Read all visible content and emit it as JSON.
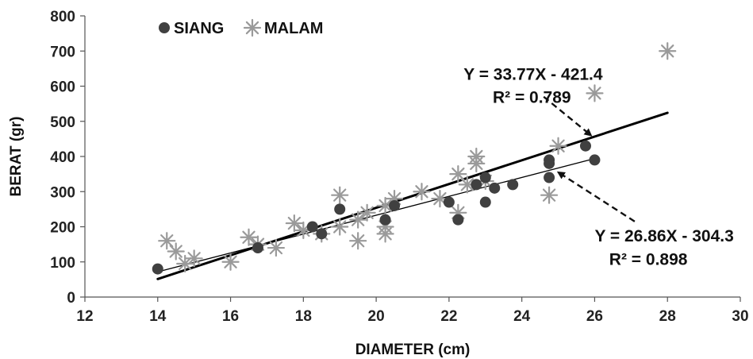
{
  "chart_data": {
    "type": "scatter",
    "xlabel": "DIAMETER (cm)",
    "ylabel": "BERAT (gr)",
    "xlim": [
      12,
      30
    ],
    "ylim": [
      0,
      800
    ],
    "xticks": [
      12,
      14,
      16,
      18,
      20,
      22,
      24,
      26,
      28,
      30
    ],
    "yticks": [
      0,
      100,
      200,
      300,
      400,
      500,
      600,
      700,
      800
    ],
    "x_tick_labels": [
      "12",
      "14",
      "16",
      "18",
      "20",
      "22",
      "24",
      "26",
      "28",
      "30"
    ],
    "y_tick_labels": [
      "0",
      "100",
      "200",
      "300",
      "400",
      "500",
      "600",
      "700",
      "800"
    ],
    "grid": false,
    "legend_position": "top-left",
    "series": [
      {
        "name": "SIANG",
        "marker": "circle",
        "color": "#404040",
        "points": [
          [
            14.0,
            80
          ],
          [
            16.75,
            140
          ],
          [
            18.25,
            200
          ],
          [
            18.5,
            180
          ],
          [
            19.0,
            250
          ],
          [
            20.25,
            220
          ],
          [
            20.5,
            260
          ],
          [
            22.0,
            270
          ],
          [
            22.25,
            220
          ],
          [
            22.75,
            320
          ],
          [
            23.0,
            270
          ],
          [
            23.0,
            340
          ],
          [
            23.25,
            310
          ],
          [
            23.75,
            320
          ],
          [
            24.75,
            340
          ],
          [
            24.75,
            380
          ],
          [
            24.75,
            390
          ],
          [
            25.75,
            430
          ],
          [
            26.0,
            390
          ]
        ],
        "trendline": {
          "slope": 26.86,
          "intercept": -304.3,
          "x_range": [
            14,
            26
          ],
          "width": 1.3
        }
      },
      {
        "name": "MALAM",
        "marker": "asterisk",
        "color": "#9a9a9a",
        "points": [
          [
            14.25,
            160
          ],
          [
            14.5,
            130
          ],
          [
            14.75,
            95
          ],
          [
            15.0,
            110
          ],
          [
            16.0,
            100
          ],
          [
            16.5,
            170
          ],
          [
            16.75,
            150
          ],
          [
            17.25,
            140
          ],
          [
            17.75,
            210
          ],
          [
            18.0,
            190
          ],
          [
            18.5,
            180
          ],
          [
            19.0,
            200
          ],
          [
            19.0,
            290
          ],
          [
            19.5,
            160
          ],
          [
            19.5,
            220
          ],
          [
            19.75,
            240
          ],
          [
            20.25,
            180
          ],
          [
            20.25,
            200
          ],
          [
            20.25,
            260
          ],
          [
            20.5,
            280
          ],
          [
            21.25,
            300
          ],
          [
            21.75,
            280
          ],
          [
            22.25,
            240
          ],
          [
            22.25,
            350
          ],
          [
            22.5,
            320
          ],
          [
            22.75,
            380
          ],
          [
            22.75,
            400
          ],
          [
            23.0,
            330
          ],
          [
            24.75,
            290
          ],
          [
            25.0,
            430
          ],
          [
            26.0,
            580
          ],
          [
            28.0,
            700
          ]
        ],
        "trendline": {
          "slope": 33.77,
          "intercept": -421.4,
          "x_range": [
            14,
            28
          ],
          "width": 3
        }
      }
    ],
    "annotations": [
      {
        "lines": [
          "Y = 33.77X - 421.4",
          "R² = 0.789"
        ],
        "series": "MALAM",
        "text_at": [
          22.4,
          618
        ],
        "r2_at": [
          23.2,
          553
        ],
        "arrow_from": [
          24.6,
          570
        ],
        "arrow_to": [
          25.9,
          460
        ]
      },
      {
        "lines": [
          "Y = 26.86X - 304.3",
          "R² = 0.898"
        ],
        "series": "SIANG",
        "text_at": [
          26.0,
          158
        ],
        "r2_at": [
          26.4,
          92
        ],
        "arrow_from": [
          27.1,
          215
        ],
        "arrow_to": [
          25.0,
          355
        ]
      }
    ]
  }
}
